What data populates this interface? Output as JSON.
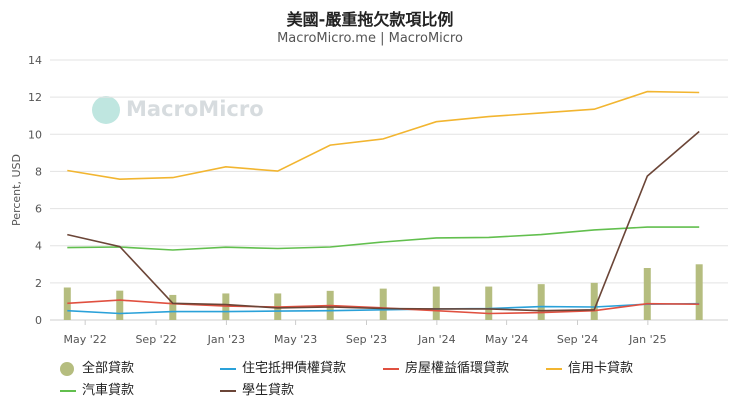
{
  "header": {
    "title": "美國-嚴重拖欠款項比例",
    "subtitle": "MacroMicro.me | MacroMicro"
  },
  "watermark": {
    "text": "MacroMicro"
  },
  "chart_data": {
    "type": "line",
    "title": "美國-嚴重拖欠款項比例",
    "subtitle": "MacroMicro.me | MacroMicro",
    "ylabel": "Percent, USD",
    "xlabel": "",
    "ylim": [
      0,
      14
    ],
    "yticks": [
      0,
      2,
      4,
      6,
      8,
      10,
      12,
      14
    ],
    "grid": true,
    "legend_position": "bottom",
    "x": [
      "2022-03-31",
      "2022-06-30",
      "2022-09-30",
      "2022-12-31",
      "2023-03-31",
      "2023-06-30",
      "2023-09-30",
      "2023-12-31",
      "2024-03-31",
      "2024-06-30",
      "2024-09-30",
      "2024-12-31",
      "2025-03-31"
    ],
    "xtick_labels": [
      "May '22",
      "Sep '22",
      "Jan '23",
      "May '23",
      "Sep '23",
      "Jan '24",
      "May '24",
      "Sep '24",
      "Jan '25"
    ],
    "series": [
      {
        "name": "全部貸款",
        "kind": "bar",
        "color": "#b5bd7f",
        "values": [
          1.75,
          1.58,
          1.35,
          1.43,
          1.43,
          1.57,
          1.69,
          1.8,
          1.8,
          1.93,
          2.0,
          2.8,
          3.0
        ]
      },
      {
        "name": "住宅抵押債權貸款",
        "kind": "line",
        "color": "#2aa1d9",
        "values": [
          0.5,
          0.35,
          0.45,
          0.45,
          0.48,
          0.5,
          0.55,
          0.6,
          0.62,
          0.72,
          0.7,
          0.85,
          0.88
        ]
      },
      {
        "name": "房屋權益循環貸款",
        "kind": "line",
        "color": "#e05040",
        "values": [
          0.9,
          1.07,
          0.88,
          0.75,
          0.7,
          0.78,
          0.65,
          0.5,
          0.35,
          0.4,
          0.5,
          0.88,
          0.85
        ]
      },
      {
        "name": "信用卡貸款",
        "kind": "line",
        "color": "#f2b530",
        "values": [
          8.05,
          7.58,
          7.67,
          8.25,
          8.02,
          9.42,
          9.75,
          10.68,
          10.95,
          11.15,
          11.35,
          12.3,
          12.25
        ]
      },
      {
        "name": "汽車貸款",
        "kind": "line",
        "color": "#62bf4e",
        "values": [
          3.9,
          3.93,
          3.77,
          3.92,
          3.85,
          3.93,
          4.2,
          4.42,
          4.45,
          4.6,
          4.85,
          5.0,
          5.0
        ]
      },
      {
        "name": "學生貸款",
        "kind": "line",
        "color": "#6b4537",
        "values": [
          4.6,
          3.95,
          0.9,
          0.83,
          0.65,
          0.7,
          0.62,
          0.6,
          0.6,
          0.5,
          0.55,
          7.75,
          10.15
        ]
      }
    ]
  }
}
